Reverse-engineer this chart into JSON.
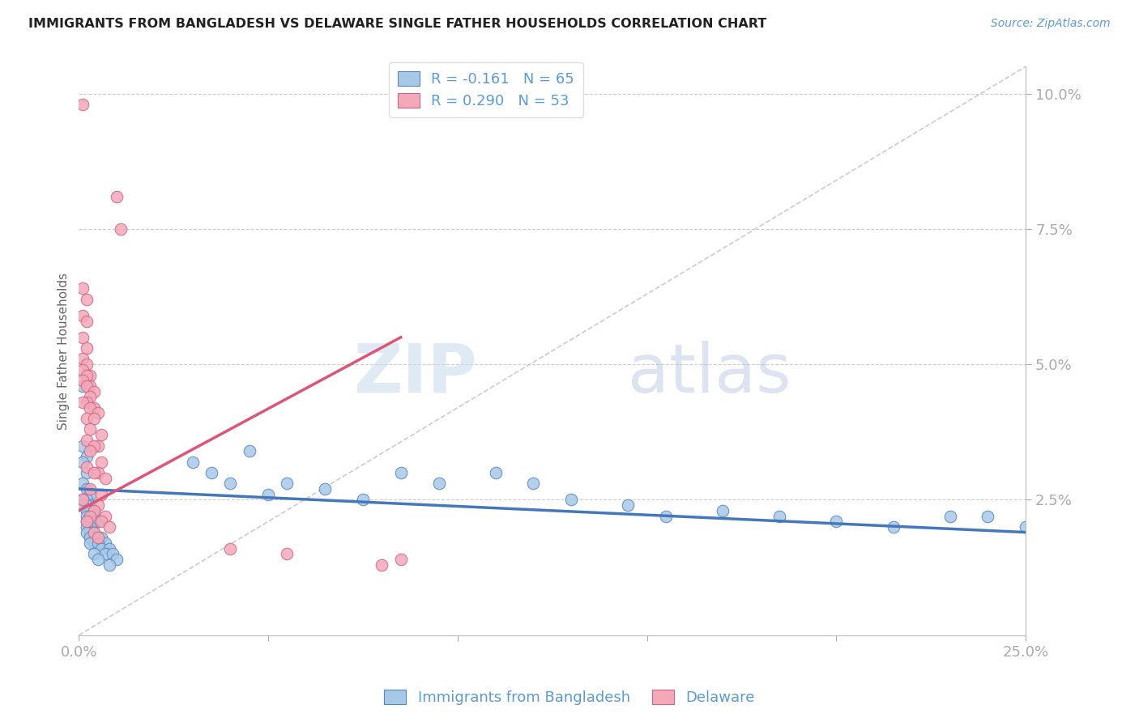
{
  "title": "IMMIGRANTS FROM BANGLADESH VS DELAWARE SINGLE FATHER HOUSEHOLDS CORRELATION CHART",
  "source": "Source: ZipAtlas.com",
  "ylabel": "Single Father Households",
  "ylabel_right_ticks": [
    "2.5%",
    "5.0%",
    "7.5%",
    "10.0%"
  ],
  "ylabel_right_vals": [
    0.025,
    0.05,
    0.075,
    0.1
  ],
  "legend_blue_r": "R = -0.161",
  "legend_blue_n": "N = 65",
  "legend_pink_r": "R = 0.290",
  "legend_pink_n": "N = 53",
  "legend_label_blue": "Immigrants from Bangladesh",
  "legend_label_pink": "Delaware",
  "watermark": "ZIPatlas",
  "blue_color": "#a8c8e8",
  "pink_color": "#f4a8b8",
  "blue_edge_color": "#5588bb",
  "pink_edge_color": "#cc6688",
  "blue_line_color": "#4477bb",
  "pink_line_color": "#dd5577",
  "dashed_line_color": "#cccccc",
  "blue_scatter": [
    [
      0.001,
      0.046
    ],
    [
      0.001,
      0.035
    ],
    [
      0.002,
      0.033
    ],
    [
      0.001,
      0.032
    ],
    [
      0.002,
      0.03
    ],
    [
      0.001,
      0.028
    ],
    [
      0.002,
      0.027
    ],
    [
      0.003,
      0.026
    ],
    [
      0.002,
      0.025
    ],
    [
      0.001,
      0.025
    ],
    [
      0.003,
      0.024
    ],
    [
      0.002,
      0.024
    ],
    [
      0.001,
      0.024
    ],
    [
      0.003,
      0.023
    ],
    [
      0.002,
      0.023
    ],
    [
      0.004,
      0.023
    ],
    [
      0.003,
      0.022
    ],
    [
      0.002,
      0.022
    ],
    [
      0.004,
      0.021
    ],
    [
      0.003,
      0.021
    ],
    [
      0.002,
      0.021
    ],
    [
      0.005,
      0.021
    ],
    [
      0.003,
      0.02
    ],
    [
      0.002,
      0.02
    ],
    [
      0.004,
      0.019
    ],
    [
      0.003,
      0.019
    ],
    [
      0.002,
      0.019
    ],
    [
      0.005,
      0.018
    ],
    [
      0.004,
      0.018
    ],
    [
      0.003,
      0.018
    ],
    [
      0.006,
      0.018
    ],
    [
      0.004,
      0.017
    ],
    [
      0.003,
      0.017
    ],
    [
      0.007,
      0.017
    ],
    [
      0.005,
      0.017
    ],
    [
      0.006,
      0.016
    ],
    [
      0.008,
      0.016
    ],
    [
      0.004,
      0.015
    ],
    [
      0.007,
      0.015
    ],
    [
      0.009,
      0.015
    ],
    [
      0.005,
      0.014
    ],
    [
      0.01,
      0.014
    ],
    [
      0.008,
      0.013
    ],
    [
      0.03,
      0.032
    ],
    [
      0.035,
      0.03
    ],
    [
      0.04,
      0.028
    ],
    [
      0.045,
      0.034
    ],
    [
      0.05,
      0.026
    ],
    [
      0.055,
      0.028
    ],
    [
      0.065,
      0.027
    ],
    [
      0.075,
      0.025
    ],
    [
      0.085,
      0.03
    ],
    [
      0.095,
      0.028
    ],
    [
      0.11,
      0.03
    ],
    [
      0.12,
      0.028
    ],
    [
      0.13,
      0.025
    ],
    [
      0.145,
      0.024
    ],
    [
      0.155,
      0.022
    ],
    [
      0.17,
      0.023
    ],
    [
      0.185,
      0.022
    ],
    [
      0.2,
      0.021
    ],
    [
      0.215,
      0.02
    ],
    [
      0.23,
      0.022
    ],
    [
      0.24,
      0.022
    ],
    [
      0.25,
      0.02
    ]
  ],
  "pink_scatter": [
    [
      0.001,
      0.098
    ],
    [
      0.01,
      0.081
    ],
    [
      0.011,
      0.075
    ],
    [
      0.001,
      0.064
    ],
    [
      0.002,
      0.062
    ],
    [
      0.001,
      0.059
    ],
    [
      0.002,
      0.058
    ],
    [
      0.001,
      0.055
    ],
    [
      0.002,
      0.053
    ],
    [
      0.001,
      0.051
    ],
    [
      0.002,
      0.05
    ],
    [
      0.001,
      0.049
    ],
    [
      0.003,
      0.048
    ],
    [
      0.002,
      0.048
    ],
    [
      0.001,
      0.047
    ],
    [
      0.003,
      0.046
    ],
    [
      0.002,
      0.046
    ],
    [
      0.004,
      0.045
    ],
    [
      0.003,
      0.044
    ],
    [
      0.002,
      0.043
    ],
    [
      0.001,
      0.043
    ],
    [
      0.004,
      0.042
    ],
    [
      0.003,
      0.042
    ],
    [
      0.005,
      0.041
    ],
    [
      0.002,
      0.04
    ],
    [
      0.004,
      0.04
    ],
    [
      0.003,
      0.038
    ],
    [
      0.006,
      0.037
    ],
    [
      0.002,
      0.036
    ],
    [
      0.005,
      0.035
    ],
    [
      0.004,
      0.035
    ],
    [
      0.003,
      0.034
    ],
    [
      0.006,
      0.032
    ],
    [
      0.002,
      0.031
    ],
    [
      0.005,
      0.03
    ],
    [
      0.004,
      0.03
    ],
    [
      0.007,
      0.029
    ],
    [
      0.003,
      0.027
    ],
    [
      0.006,
      0.026
    ],
    [
      0.001,
      0.025
    ],
    [
      0.005,
      0.024
    ],
    [
      0.004,
      0.023
    ],
    [
      0.007,
      0.022
    ],
    [
      0.003,
      0.022
    ],
    [
      0.006,
      0.021
    ],
    [
      0.002,
      0.021
    ],
    [
      0.008,
      0.02
    ],
    [
      0.004,
      0.019
    ],
    [
      0.005,
      0.018
    ],
    [
      0.04,
      0.016
    ],
    [
      0.055,
      0.015
    ],
    [
      0.08,
      0.013
    ],
    [
      0.085,
      0.014
    ]
  ],
  "xlim": [
    0.0,
    0.25
  ],
  "ylim": [
    0.0,
    0.105
  ],
  "x_ticks": [
    0.0,
    0.05,
    0.1,
    0.15,
    0.2,
    0.25
  ],
  "blue_trend_x": [
    0.0,
    0.25
  ],
  "blue_trend_y": [
    0.027,
    0.019
  ],
  "pink_trend_x": [
    0.0,
    0.085
  ],
  "pink_trend_y": [
    0.023,
    0.055
  ],
  "diag_line_x": [
    0.0,
    0.25
  ],
  "diag_line_y": [
    0.0,
    0.105
  ]
}
